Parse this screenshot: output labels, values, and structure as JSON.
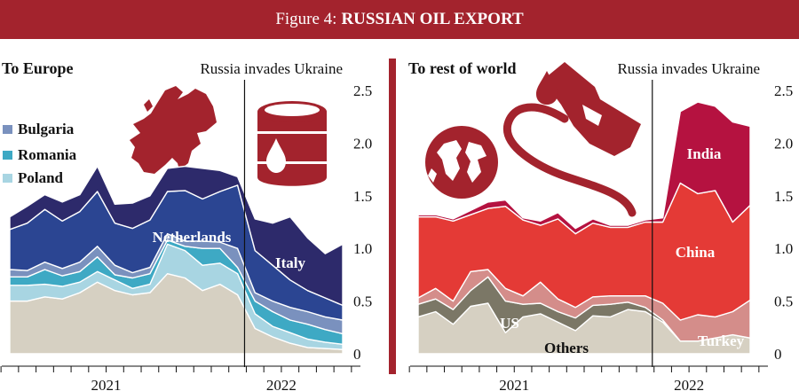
{
  "figure": {
    "label": "Figure 4:",
    "title": "RUSSIAN OIL EXPORT"
  },
  "colors": {
    "banner": "#a3232d",
    "others": "#d6d0c2",
    "poland": "#a8d5e2",
    "romania": "#3ea9c4",
    "bulgaria": "#7a91be",
    "netherlands": "#2b4592",
    "italy": "#2d2a6b",
    "us": "#7b7766",
    "turkey": "#d48d8a",
    "china": "#e43a36",
    "india": "#b51240"
  },
  "icons": [
    "europe-map-icon",
    "oil-barrel-icon",
    "globe-icon",
    "fuel-nozzle-icon"
  ],
  "chart_data": [
    {
      "type": "area",
      "subtype": "stacked",
      "title": "To Europe",
      "annotation": "Russia invades Ukraine",
      "x": [
        0,
        1,
        2,
        3,
        4,
        5,
        6,
        7,
        8,
        9,
        10,
        11,
        12,
        13,
        14,
        15,
        16,
        17,
        18,
        19
      ],
      "event_x": 13.4,
      "xticks": [
        {
          "label": "2021",
          "pos": 5.5
        },
        {
          "label": "2022",
          "pos": 15.5
        }
      ],
      "ylim": [
        0,
        2.5
      ],
      "yticks": [
        "0",
        "0.5",
        "1.0",
        "1.5",
        "2.0",
        "2.5"
      ],
      "grid": false,
      "legend": [
        "Bulgaria",
        "Romania",
        "Poland"
      ],
      "series": [
        {
          "name": "Others",
          "color_key": "others",
          "values": [
            0.5,
            0.5,
            0.54,
            0.52,
            0.58,
            0.68,
            0.6,
            0.56,
            0.58,
            0.76,
            0.72,
            0.6,
            0.66,
            0.56,
            0.24,
            0.16,
            0.1,
            0.06,
            0.05,
            0.04
          ]
        },
        {
          "name": "Poland",
          "color_key": "poland",
          "values": [
            0.15,
            0.15,
            0.12,
            0.12,
            0.1,
            0.1,
            0.1,
            0.06,
            0.08,
            0.28,
            0.26,
            0.24,
            0.2,
            0.2,
            0.14,
            0.1,
            0.1,
            0.08,
            0.06,
            0.05
          ]
        },
        {
          "name": "Romania",
          "color_key": "romania",
          "values": [
            0.08,
            0.08,
            0.14,
            0.1,
            0.1,
            0.14,
            0.05,
            0.1,
            0.1,
            0.04,
            0.04,
            0.16,
            0.14,
            0.06,
            0.12,
            0.14,
            0.12,
            0.14,
            0.12,
            0.1
          ]
        },
        {
          "name": "Bulgaria",
          "color_key": "bulgaria",
          "values": [
            0.07,
            0.06,
            0.07,
            0.07,
            0.09,
            0.1,
            0.09,
            0.05,
            0.06,
            0.06,
            0.05,
            0.07,
            0.06,
            0.18,
            0.08,
            0.1,
            0.12,
            0.12,
            0.12,
            0.13
          ]
        },
        {
          "name": "Netherlands",
          "color_key": "netherlands",
          "values": [
            0.38,
            0.45,
            0.5,
            0.45,
            0.48,
            0.52,
            0.4,
            0.42,
            0.45,
            0.4,
            0.48,
            0.4,
            0.48,
            0.6,
            0.4,
            0.34,
            0.26,
            0.2,
            0.18,
            0.14
          ]
        },
        {
          "name": "Italy",
          "color_key": "italy",
          "values": [
            0.12,
            0.16,
            0.14,
            0.18,
            0.16,
            0.24,
            0.18,
            0.24,
            0.23,
            0.22,
            0.23,
            0.29,
            0.2,
            0.08,
            0.3,
            0.4,
            0.6,
            0.5,
            0.42,
            0.58
          ]
        }
      ]
    },
    {
      "type": "area",
      "subtype": "stacked",
      "title": "To rest of world",
      "annotation": "Russia invades Ukraine",
      "x": [
        0,
        1,
        2,
        3,
        4,
        5,
        6,
        7,
        8,
        9,
        10,
        11,
        12,
        13,
        14,
        15,
        16,
        17,
        18,
        19
      ],
      "event_x": 13.4,
      "xticks": [
        {
          "label": "2021",
          "pos": 5.5
        },
        {
          "label": "2022",
          "pos": 15.5
        }
      ],
      "ylim": [
        0,
        2.5
      ],
      "yticks": [
        "0",
        "0.5",
        "1.0",
        "1.5",
        "2.0",
        "2.5"
      ],
      "grid": false,
      "series": [
        {
          "name": "Others",
          "color_key": "others",
          "values": [
            0.35,
            0.4,
            0.28,
            0.45,
            0.48,
            0.2,
            0.35,
            0.38,
            0.3,
            0.22,
            0.36,
            0.35,
            0.42,
            0.4,
            0.3,
            0.12,
            0.12,
            0.15,
            0.18,
            0.15
          ]
        },
        {
          "name": "US",
          "color_key": "us",
          "values": [
            0.12,
            0.12,
            0.14,
            0.15,
            0.25,
            0.3,
            0.12,
            0.1,
            0.1,
            0.12,
            0.1,
            0.12,
            0.07,
            0.04,
            0.02,
            0.0,
            0.0,
            0.0,
            0.0,
            0.0
          ]
        },
        {
          "name": "Turkey",
          "color_key": "turkey",
          "values": [
            0.06,
            0.1,
            0.08,
            0.18,
            0.07,
            0.12,
            0.08,
            0.2,
            0.12,
            0.1,
            0.08,
            0.08,
            0.06,
            0.11,
            0.16,
            0.2,
            0.25,
            0.2,
            0.22,
            0.36
          ]
        },
        {
          "name": "China",
          "color_key": "china",
          "values": [
            0.77,
            0.68,
            0.76,
            0.54,
            0.58,
            0.78,
            0.72,
            0.54,
            0.76,
            0.7,
            0.7,
            0.65,
            0.65,
            0.7,
            0.77,
            1.3,
            1.15,
            1.2,
            0.85,
            0.9
          ]
        },
        {
          "name": "India",
          "color_key": "india",
          "values": [
            0.02,
            0.02,
            0.02,
            0.04,
            0.06,
            0.06,
            0.02,
            0.04,
            0.06,
            0.05,
            0.04,
            0.02,
            0.02,
            0.02,
            0.04,
            0.68,
            0.87,
            0.8,
            0.95,
            0.75
          ]
        }
      ]
    }
  ]
}
